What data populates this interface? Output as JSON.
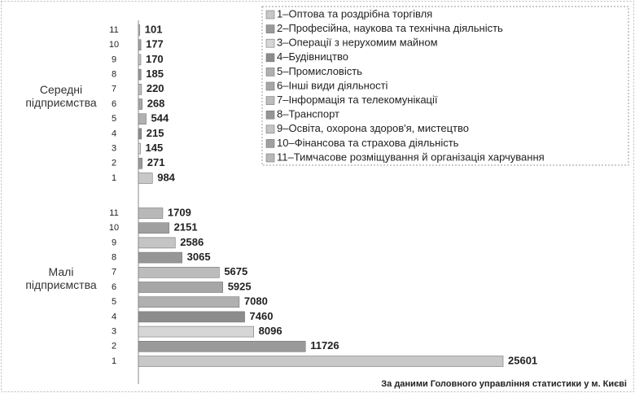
{
  "chart_data": {
    "type": "bar",
    "orientation": "horizontal",
    "categories": [
      "1",
      "2",
      "3",
      "4",
      "5",
      "6",
      "7",
      "8",
      "9",
      "10",
      "11"
    ],
    "series": [
      {
        "name": "Середні підприємства",
        "values": [
          984,
          271,
          145,
          215,
          544,
          268,
          220,
          185,
          170,
          177,
          101
        ]
      },
      {
        "name": "Малі підприємства",
        "values": [
          25601,
          11726,
          8096,
          7460,
          7080,
          5925,
          5675,
          3065,
          2586,
          2151,
          1709
        ]
      }
    ],
    "category_colors": [
      "#c8c8c8",
      "#9a9a9a",
      "#d6d6d6",
      "#8c8c8c",
      "#b0b0b0",
      "#a6a6a6",
      "#bcbcbc",
      "#969696",
      "#c4c4c4",
      "#a0a0a0",
      "#b8b8b8"
    ],
    "legend_labels": [
      "1–Оптова та роздрібна торгівля",
      "2–Професійна, наукова та технічна діяльність",
      "3–Операції з нерухомим майном",
      "4–Будівництво",
      "5–Промисловість",
      "6–Інші види діяльності",
      "7–Інформація та телекомунікації",
      "8–Транспорт",
      "9–Освіта, охорона здоров'я, мистецтво",
      "10–Фінансова та страхова діяльність",
      "11–Тимчасове розміщування й організація харчування"
    ],
    "xlim": [
      0,
      26000
    ],
    "source": "За даними Головного управління статистики у м. Києві"
  }
}
